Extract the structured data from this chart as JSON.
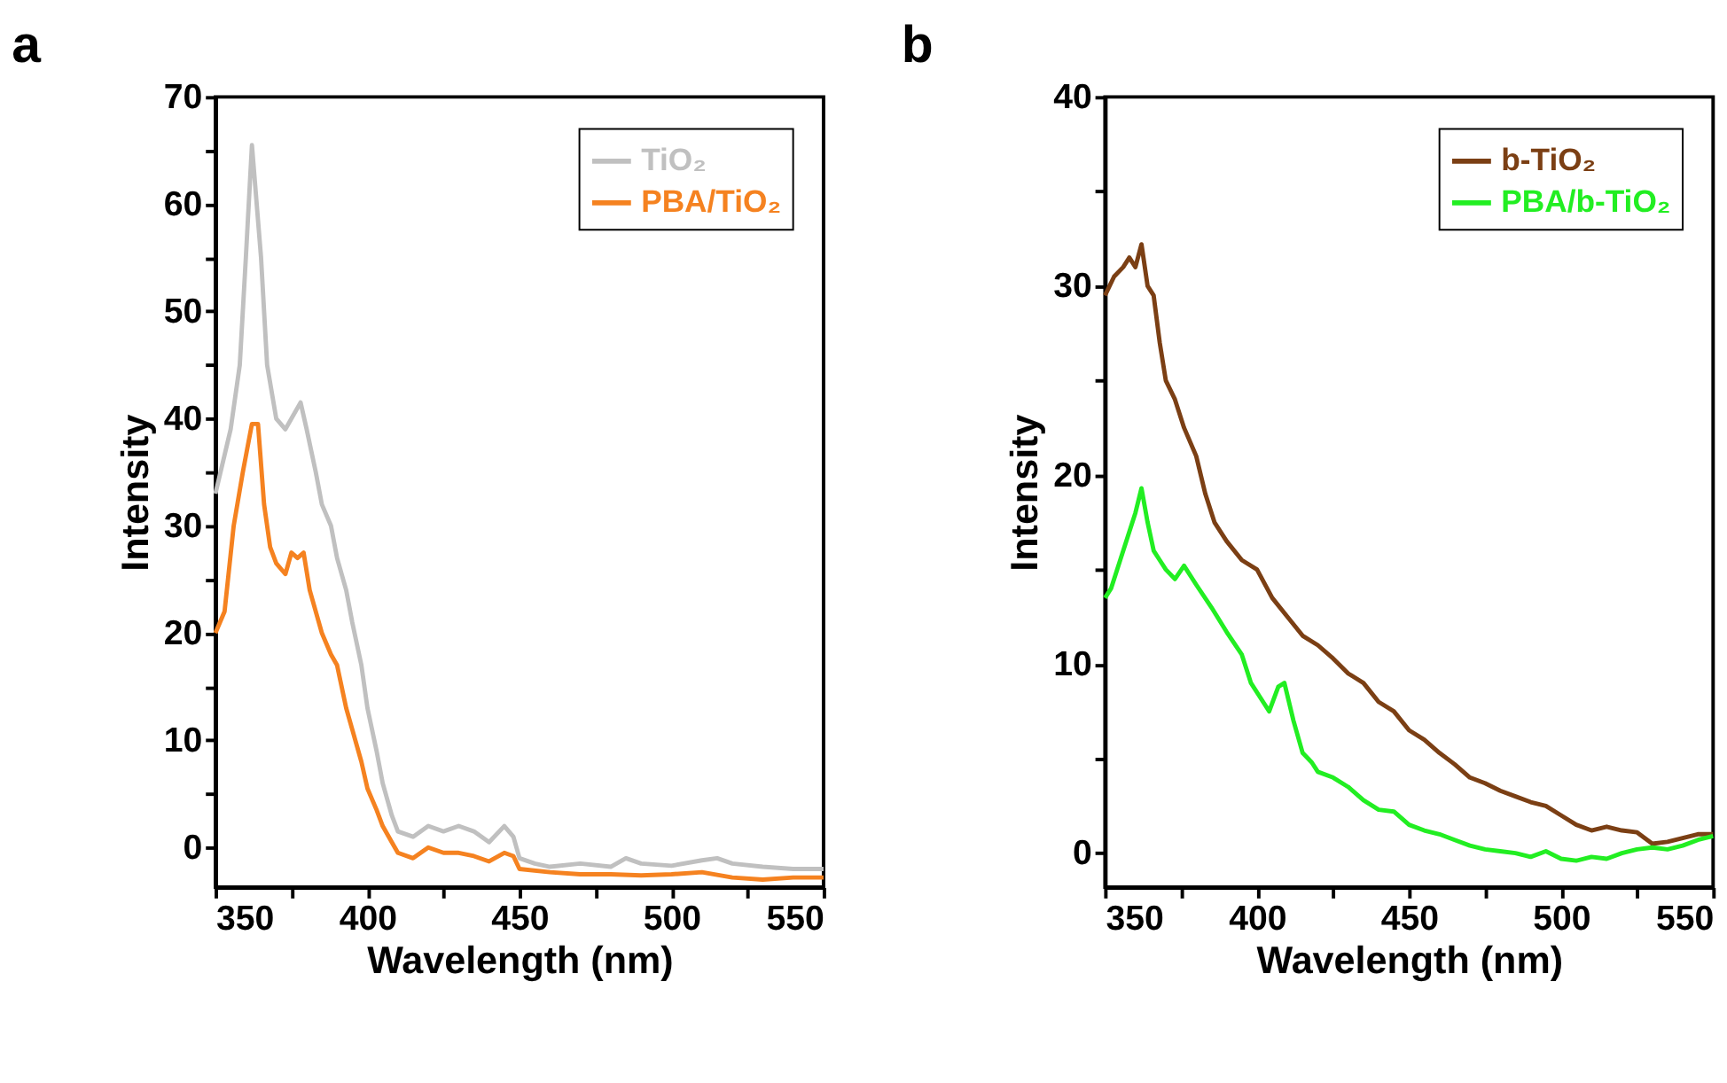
{
  "chart_data": [
    {
      "type": "line",
      "title": "a",
      "xlabel": "Wavelength (nm)",
      "ylabel": "Intensity",
      "xlim": [
        350,
        550
      ],
      "ylim": [
        -3.7,
        70
      ],
      "xticks": [
        350,
        {
          "value": 375,
          "label": null
        },
        400,
        {
          "value": 425,
          "label": null
        },
        450,
        {
          "value": 475,
          "label": null
        },
        500,
        {
          "value": 525,
          "label": null
        },
        550
      ],
      "yticks": [
        0,
        {
          "value": 5,
          "label": null
        },
        10,
        {
          "value": 15,
          "label": null
        },
        20,
        {
          "value": 25,
          "label": null
        },
        30,
        {
          "value": 35,
          "label": null
        },
        40,
        {
          "value": 45,
          "label": null
        },
        50,
        {
          "value": 55,
          "label": null
        },
        60,
        {
          "value": 65,
          "label": null
        },
        70
      ],
      "grid": false,
      "legend": "top right",
      "line_style": "solid",
      "marker": "none",
      "series": [
        {
          "name": "TiO₂",
          "color": "#c0c0c0",
          "x": [
            350,
            355,
            358,
            360,
            362,
            365,
            367,
            370,
            373,
            375,
            378,
            380,
            383,
            385,
            388,
            390,
            393,
            395,
            398,
            400,
            403,
            405,
            408,
            410,
            415,
            420,
            425,
            430,
            435,
            440,
            445,
            448,
            450,
            455,
            460,
            470,
            480,
            485,
            490,
            500,
            510,
            515,
            520,
            530,
            540,
            550
          ],
          "values": [
            33,
            39,
            45,
            55,
            65.5,
            55,
            45,
            40,
            39,
            40,
            41.5,
            39,
            35,
            32,
            30,
            27,
            24,
            21,
            17,
            13,
            9,
            6,
            3,
            1.5,
            1,
            2,
            1.5,
            2,
            1.5,
            0.5,
            2,
            1,
            -1,
            -1.5,
            -1.8,
            -1.5,
            -1.8,
            -1,
            -1.5,
            -1.7,
            -1.2,
            -1,
            -1.5,
            -1.8,
            -2,
            -2
          ]
        },
        {
          "name": "PBA/TiO₂",
          "color": "#f58220",
          "x": [
            350,
            353,
            356,
            359,
            362,
            364,
            366,
            368,
            370,
            373,
            375,
            377,
            379,
            381,
            385,
            388,
            390,
            393,
            395,
            398,
            400,
            403,
            405,
            408,
            410,
            415,
            420,
            425,
            430,
            435,
            440,
            445,
            448,
            450,
            460,
            470,
            480,
            490,
            500,
            510,
            520,
            530,
            540,
            550
          ],
          "values": [
            20,
            22,
            30,
            35,
            39.5,
            39.5,
            32,
            28,
            26.5,
            25.5,
            27.5,
            27,
            27.5,
            24,
            20,
            18,
            17,
            13,
            11,
            8,
            5.5,
            3.5,
            2,
            0.5,
            -0.5,
            -1,
            0,
            -0.5,
            -0.5,
            -0.8,
            -1.3,
            -0.5,
            -0.8,
            -2,
            -2.3,
            -2.5,
            -2.5,
            -2.6,
            -2.5,
            -2.3,
            -2.8,
            -3,
            -2.8,
            -2.8
          ]
        }
      ]
    },
    {
      "type": "line",
      "title": "b",
      "xlabel": "Wavelength (nm)",
      "ylabel": "Intensity",
      "xlim": [
        350,
        550
      ],
      "ylim": [
        -1.8,
        40
      ],
      "xticks": [
        350,
        {
          "value": 375,
          "label": null
        },
        400,
        {
          "value": 425,
          "label": null
        },
        450,
        {
          "value": 475,
          "label": null
        },
        500,
        {
          "value": 525,
          "label": null
        },
        550
      ],
      "yticks": [
        0,
        {
          "value": 5,
          "label": null
        },
        10,
        {
          "value": 15,
          "label": null
        },
        20,
        {
          "value": 25,
          "label": null
        },
        30,
        {
          "value": 35,
          "label": null
        },
        40
      ],
      "grid": false,
      "legend": "top right",
      "line_style": "solid",
      "marker": "none",
      "series": [
        {
          "name": "b-TiO₂",
          "color": "#7b3f14",
          "x": [
            350,
            353,
            356,
            358,
            360,
            362,
            364,
            366,
            368,
            370,
            373,
            376,
            380,
            383,
            386,
            390,
            395,
            400,
            405,
            410,
            415,
            420,
            425,
            430,
            435,
            440,
            445,
            450,
            455,
            460,
            465,
            470,
            475,
            480,
            485,
            490,
            495,
            500,
            505,
            510,
            515,
            520,
            525,
            530,
            535,
            540,
            545,
            550
          ],
          "values": [
            29.5,
            30.5,
            31,
            31.5,
            31,
            32.2,
            30,
            29.5,
            27,
            25,
            24,
            22.5,
            21,
            19,
            17.5,
            16.5,
            15.5,
            15,
            13.5,
            12.5,
            11.5,
            11,
            10.3,
            9.5,
            9,
            8,
            7.5,
            6.5,
            6,
            5.3,
            4.7,
            4,
            3.7,
            3.3,
            3,
            2.7,
            2.5,
            2,
            1.5,
            1.2,
            1.4,
            1.2,
            1.1,
            0.5,
            0.6,
            0.8,
            1,
            1
          ]
        },
        {
          "name": "PBA/b-TiO₂",
          "color": "#22ee22",
          "x": [
            350,
            352,
            355,
            358,
            360,
            362,
            364,
            366,
            368,
            370,
            373,
            376,
            380,
            385,
            390,
            395,
            398,
            402,
            404,
            407,
            409,
            412,
            415,
            418,
            420,
            425,
            430,
            435,
            440,
            445,
            450,
            455,
            460,
            465,
            470,
            475,
            480,
            485,
            490,
            495,
            500,
            505,
            510,
            515,
            520,
            525,
            530,
            535,
            540,
            545,
            550
          ],
          "values": [
            13.5,
            14,
            15.5,
            17,
            18,
            19.3,
            17.5,
            16,
            15.5,
            15,
            14.5,
            15.2,
            14.2,
            13,
            11.7,
            10.5,
            9,
            8,
            7.5,
            8.8,
            9,
            7,
            5.3,
            4.8,
            4.3,
            4,
            3.5,
            2.8,
            2.3,
            2.2,
            1.5,
            1.2,
            1,
            0.7,
            0.4,
            0.2,
            0.1,
            0,
            -0.2,
            0.1,
            -0.3,
            -0.4,
            -0.2,
            -0.3,
            0,
            0.2,
            0.3,
            0.2,
            0.4,
            0.7,
            0.9
          ]
        }
      ]
    }
  ]
}
